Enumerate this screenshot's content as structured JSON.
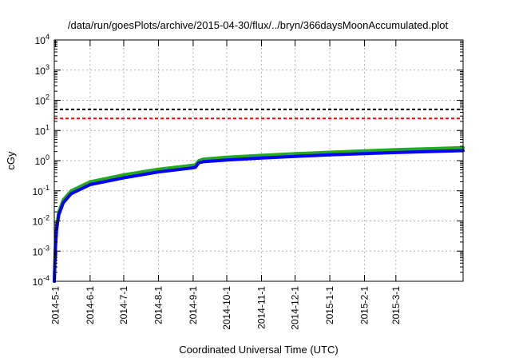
{
  "chart_data": {
    "type": "line",
    "title": "/data/run/goesPlots/archive/2015-04-30/flux/../bryn/366daysMoonAccumulated.plot",
    "xlabel": "Coordinated Universal Time (UTC)",
    "ylabel": "cGy",
    "y_scale": "log",
    "ylim": [
      0.0001,
      10000
    ],
    "xlim": [
      "2014-04-30",
      "2015-04-30"
    ],
    "grid": true,
    "x_ticks": [
      "2014-5-1",
      "2014-6-1",
      "2014-7-1",
      "2014-8-1",
      "2014-9-1",
      "2014-10-1",
      "2014-11-1",
      "2014-12-1",
      "2015-1-1",
      "2015-2-1",
      "2015-3-1"
    ],
    "y_tick_mantissa": "10",
    "y_tick_exponents": [
      "-4",
      "-3",
      "-2",
      "-1",
      "0",
      "1",
      "2",
      "3",
      "4"
    ],
    "reference_lines": [
      {
        "y": 50,
        "color": "#000000",
        "style": "dashed"
      },
      {
        "y": 25,
        "color": "#ff0000",
        "style": "dashed"
      }
    ],
    "series": [
      {
        "color": "#22aa22",
        "x": [
          "2014-04-30",
          "2014-05-01",
          "2014-05-02",
          "2014-05-04",
          "2014-05-08",
          "2014-05-15",
          "2014-06-01",
          "2014-07-01",
          "2014-08-01",
          "2014-08-31",
          "2014-09-03",
          "2014-09-06",
          "2014-09-10",
          "2014-10-01",
          "2014-11-01",
          "2014-12-01",
          "2015-01-01",
          "2015-02-01",
          "2015-03-01",
          "2015-04-01",
          "2015-04-30"
        ],
        "values": [
          0.0001,
          0.0015,
          0.006,
          0.02,
          0.05,
          0.1,
          0.2,
          0.34,
          0.52,
          0.7,
          0.72,
          1.0,
          1.12,
          1.3,
          1.5,
          1.7,
          1.9,
          2.1,
          2.3,
          2.5,
          2.7
        ]
      },
      {
        "color": "#0000ff",
        "x": [
          "2014-04-30",
          "2014-05-01",
          "2014-05-02",
          "2014-05-04",
          "2014-05-08",
          "2014-05-15",
          "2014-06-01",
          "2014-07-01",
          "2014-08-01",
          "2014-08-31",
          "2014-09-03",
          "2014-09-06",
          "2014-09-10",
          "2014-10-01",
          "2014-11-01",
          "2014-12-01",
          "2015-01-01",
          "2015-02-01",
          "2015-03-01",
          "2015-04-01",
          "2015-04-30"
        ],
        "values": [
          0.0001,
          0.0012,
          0.005,
          0.016,
          0.04,
          0.08,
          0.16,
          0.27,
          0.42,
          0.57,
          0.6,
          0.85,
          0.92,
          1.05,
          1.22,
          1.38,
          1.55,
          1.7,
          1.85,
          2.0,
          2.15
        ]
      }
    ]
  }
}
